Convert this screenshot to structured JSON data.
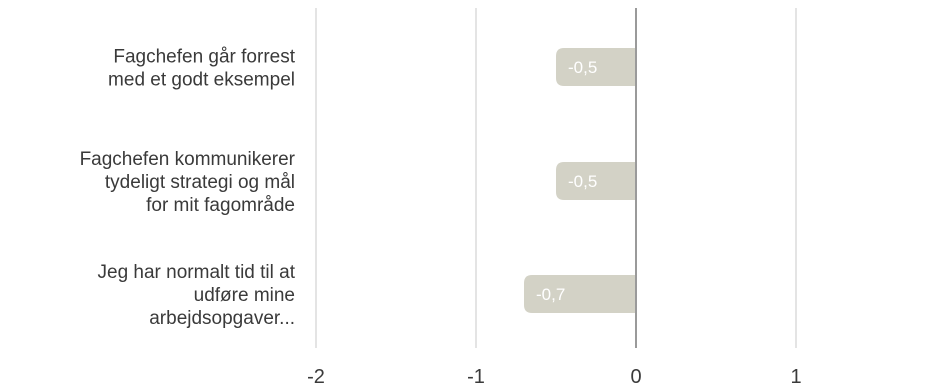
{
  "chart_data": {
    "type": "bar",
    "orientation": "horizontal",
    "categories": [
      "Fagchefen går forrest med et godt eksempel",
      "Fagchefen kommunikerer tydeligt strategi og mål for mit fagområde",
      "Jeg har normalt tid til at udføre mine arbejdsopgaver..."
    ],
    "category_lines": [
      [
        "Fagchefen går forrest",
        "med et godt eksempel"
      ],
      [
        "Fagchefen kommunikerer",
        "tydeligt strategi og mål",
        "for mit fagområde"
      ],
      [
        "Jeg har normalt tid til at",
        "udføre mine",
        "arbejdsopgaver..."
      ]
    ],
    "values": [
      -0.5,
      -0.5,
      -0.7
    ],
    "data_labels": [
      "-0,5",
      "-0,5",
      "-0,7"
    ],
    "xlim": [
      -2,
      2
    ],
    "x_ticks": [
      -2,
      -1,
      0,
      1
    ],
    "x_tick_labels": [
      "-2",
      "-1",
      "0",
      "1"
    ],
    "grid": true,
    "legend": "none",
    "colors": {
      "bar": "#d3d2c6",
      "gridline": "#c8c8c8",
      "zero_line": "#9a9a9a",
      "label_text": "#3a3a3a",
      "data_label_text": "#ffffff"
    }
  }
}
